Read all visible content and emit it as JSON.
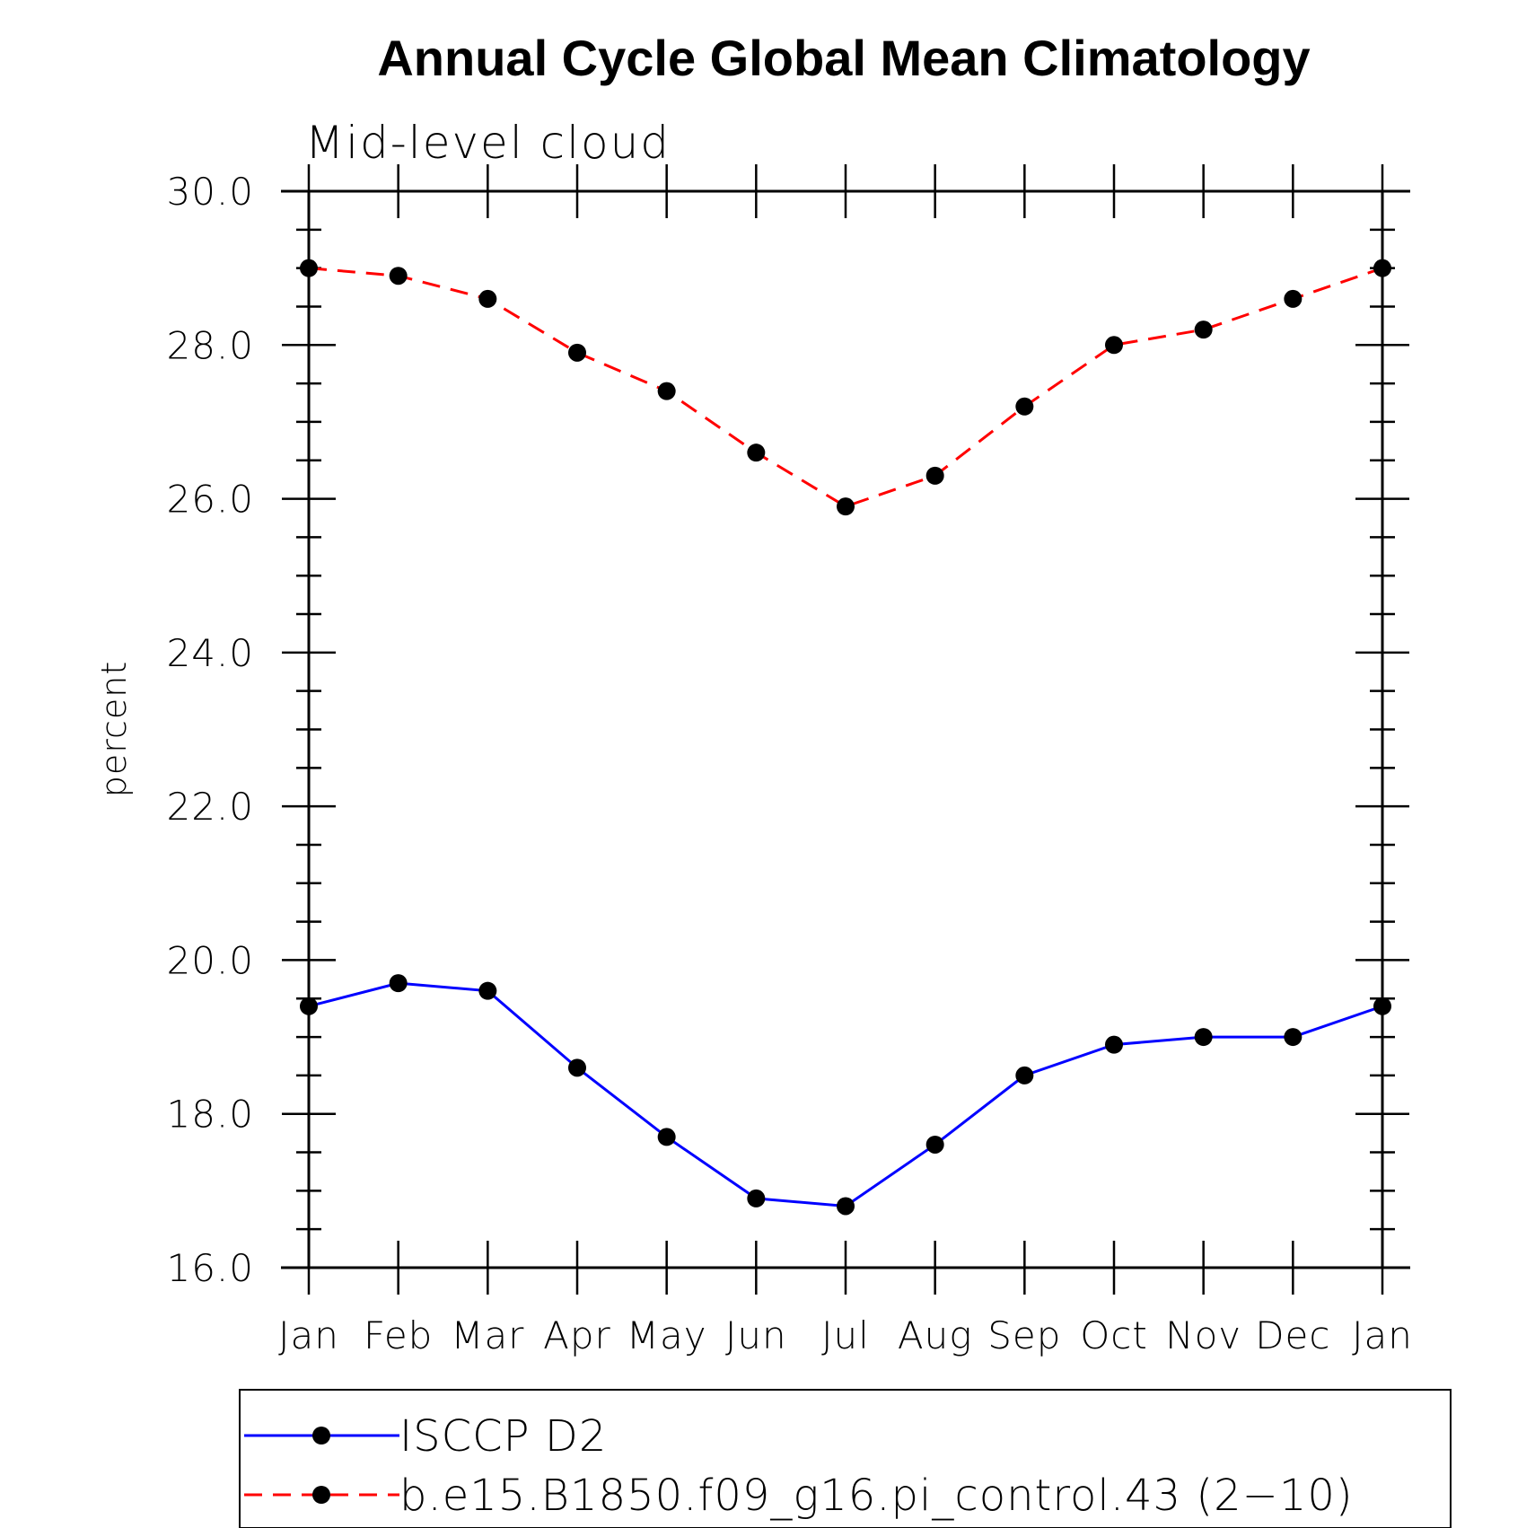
{
  "chart_data": {
    "type": "line",
    "title": "Annual Cycle Global Mean Climatology",
    "subtitle": "Mid-level cloud",
    "xlabel": "",
    "ylabel": "percent",
    "ylim": [
      16.0,
      30.0
    ],
    "yticks": [
      "16.0",
      "18.0",
      "20.0",
      "22.0",
      "24.0",
      "26.0",
      "28.0",
      "30.0"
    ],
    "categories": [
      "Jan",
      "Feb",
      "Mar",
      "Apr",
      "May",
      "Jun",
      "Jul",
      "Aug",
      "Sep",
      "Oct",
      "Nov",
      "Dec",
      "Jan"
    ],
    "grid": false,
    "legend_position": "bottom",
    "series": [
      {
        "name": "ISCCP D2",
        "color": "#0000ff",
        "line_style": "solid",
        "marker": "filled-circle",
        "values": [
          19.4,
          19.7,
          19.6,
          18.6,
          17.7,
          16.9,
          16.8,
          17.6,
          18.5,
          18.9,
          19.0,
          19.0,
          19.4
        ]
      },
      {
        "name": "b.e15.B1850.f09_g16.pi_control.43 (2−10)",
        "color": "#ff0000",
        "line_style": "dashed",
        "marker": "filled-circle",
        "values": [
          29.0,
          28.9,
          28.6,
          27.9,
          27.4,
          26.6,
          25.9,
          26.3,
          27.2,
          28.0,
          28.2,
          28.6,
          29.0
        ]
      }
    ]
  }
}
